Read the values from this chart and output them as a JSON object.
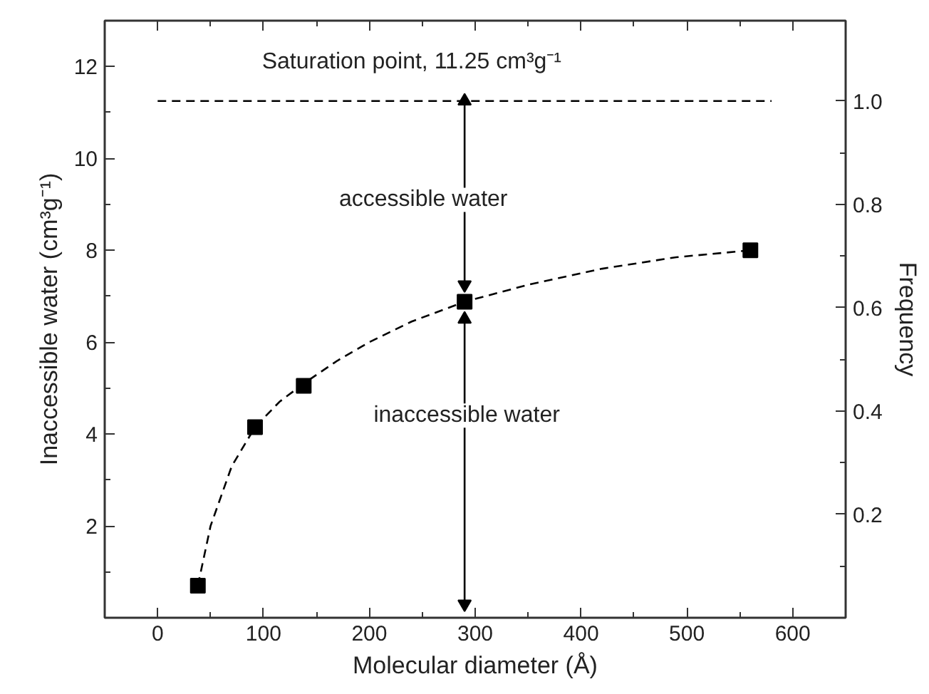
{
  "chart_data": {
    "type": "scatter",
    "xlabel": "Molecular diameter (Å)",
    "ylabel": "Inaccessible water (cm³g⁻¹)",
    "y2label": "Frequency",
    "xlim": [
      -50,
      650
    ],
    "ylim": [
      0,
      13
    ],
    "y2lim": [
      0,
      1.1556
    ],
    "xticks": [
      0,
      {
        "value": 50,
        "label": null
      },
      100,
      {
        "value": 150,
        "label": null
      },
      200,
      {
        "value": 250,
        "label": null
      },
      300,
      {
        "value": 350,
        "label": null
      },
      400,
      {
        "value": 450,
        "label": null
      },
      500,
      {
        "value": 550,
        "label": null
      },
      600
    ],
    "yticks": [
      {
        "value": 1,
        "label": null
      },
      2,
      {
        "value": 3,
        "label": null
      },
      4,
      {
        "value": 5,
        "label": null
      },
      6,
      {
        "value": 7,
        "label": null
      },
      8,
      {
        "value": 9,
        "label": null
      },
      10,
      {
        "value": 11,
        "label": null
      },
      12
    ],
    "y2ticks": [
      {
        "value": 0.1,
        "label": null
      },
      0.2,
      {
        "value": 0.3,
        "label": null
      },
      0.4,
      {
        "value": 0.5,
        "label": null
      },
      0.6,
      {
        "value": 0.7,
        "label": null
      },
      0.8,
      {
        "value": 0.9,
        "label": null
      },
      {
        "value": 1.0,
        "label": "1.0"
      }
    ],
    "series": [
      {
        "type": "line",
        "color": "#000000",
        "line_style": "dashed",
        "x": [
          38,
          50,
          70,
          92,
          115,
          138,
          170,
          200,
          240,
          290,
          350,
          420,
          490,
          560
        ],
        "values": [
          0.7,
          2.0,
          3.3,
          4.15,
          4.7,
          5.1,
          5.6,
          6.0,
          6.45,
          6.88,
          7.25,
          7.6,
          7.85,
          8.0
        ]
      },
      {
        "type": "line",
        "color": "#000000",
        "line_style": "dashed",
        "x": [
          0,
          580
        ],
        "values": [
          11.25,
          11.25
        ]
      },
      {
        "type": "line",
        "color": "#000000",
        "line_style": "solid",
        "marker": "triangle",
        "x": [
          290,
          290
        ],
        "values": [
          11.25,
          7.25
        ]
      },
      {
        "type": "line",
        "color": "#000000",
        "line_style": "solid",
        "marker": "triangle",
        "x": [
          290,
          290
        ],
        "values": [
          6.5,
          0.3
        ]
      },
      {
        "color": "#000000",
        "marker": "square",
        "x": [
          38,
          92,
          138,
          290,
          560
        ],
        "values": [
          0.7,
          4.15,
          5.05,
          6.88,
          8.0
        ]
      }
    ],
    "annotations": [
      "Saturation point, 11.25 cm³g⁻¹",
      "accessible water",
      "inaccessible water"
    ]
  }
}
